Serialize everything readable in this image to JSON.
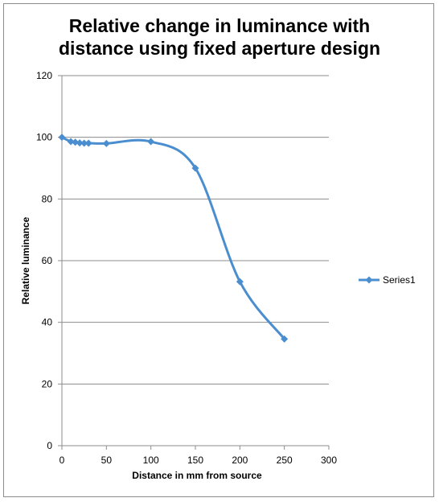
{
  "chart_data": {
    "type": "line",
    "title_lines": [
      "Relative change in luminance with",
      "distance using fixed aperture design"
    ],
    "xlabel": "Distance in mm from source",
    "ylabel": "Relative luminance",
    "xlim": [
      0,
      300
    ],
    "ylim": [
      0,
      120
    ],
    "xticks": [
      0,
      50,
      100,
      150,
      200,
      250,
      300
    ],
    "yticks": [
      0,
      20,
      40,
      60,
      80,
      100,
      120
    ],
    "grid": "horizontal",
    "legend": "right",
    "series": [
      {
        "name": "Series1",
        "color": "#4a8ecf",
        "x": [
          0,
          10,
          15,
          20,
          25,
          30,
          50,
          100,
          150,
          200,
          250
        ],
        "y": [
          100,
          98.6,
          98.4,
          98.2,
          98.1,
          98.1,
          98.0,
          98.6,
          90.0,
          53.2,
          34.6
        ]
      }
    ]
  }
}
